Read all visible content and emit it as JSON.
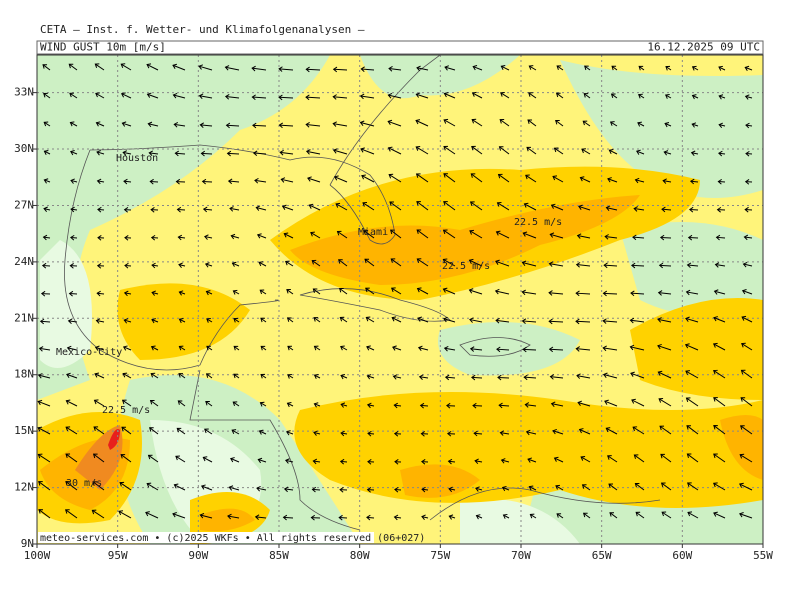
{
  "header": {
    "institute": "CETA — Inst. f. Wetter- und Klimafolgenanalysen —",
    "parameter": "WIND GUST 10m [m/s]",
    "valid_time": "16.12.2025 09 UTC"
  },
  "map": {
    "lon_range": [
      -100,
      -55
    ],
    "lat_range": [
      9,
      35
    ],
    "lon_ticks": [
      {
        "value": -100,
        "label": "100W"
      },
      {
        "value": -95,
        "label": "95W"
      },
      {
        "value": -90,
        "label": "90W"
      },
      {
        "value": -85,
        "label": "85W"
      },
      {
        "value": -80,
        "label": "80W"
      },
      {
        "value": -75,
        "label": "75W"
      },
      {
        "value": -70,
        "label": "70W"
      },
      {
        "value": -65,
        "label": "65W"
      },
      {
        "value": -60,
        "label": "60W"
      },
      {
        "value": -55,
        "label": "55W"
      }
    ],
    "lat_ticks": [
      {
        "value": 9,
        "label": "9N"
      },
      {
        "value": 12,
        "label": "12N"
      },
      {
        "value": 15,
        "label": "15N"
      },
      {
        "value": 18,
        "label": "18N"
      },
      {
        "value": 21,
        "label": "21N"
      },
      {
        "value": 24,
        "label": "24N"
      },
      {
        "value": 27,
        "label": "27N"
      },
      {
        "value": 30,
        "label": "30N"
      },
      {
        "value": 33,
        "label": "33N"
      }
    ],
    "grid": true,
    "cities": [
      "Houston",
      "Miami",
      "Mexico-City"
    ],
    "contour_labels": [
      "22.5 m/s",
      "22.5 m/s",
      "22.5 m/s",
      "30 m/s"
    ]
  },
  "footer": "meteo-services.com • (c)2025 WKFs • All rights reserved (06+027)"
}
